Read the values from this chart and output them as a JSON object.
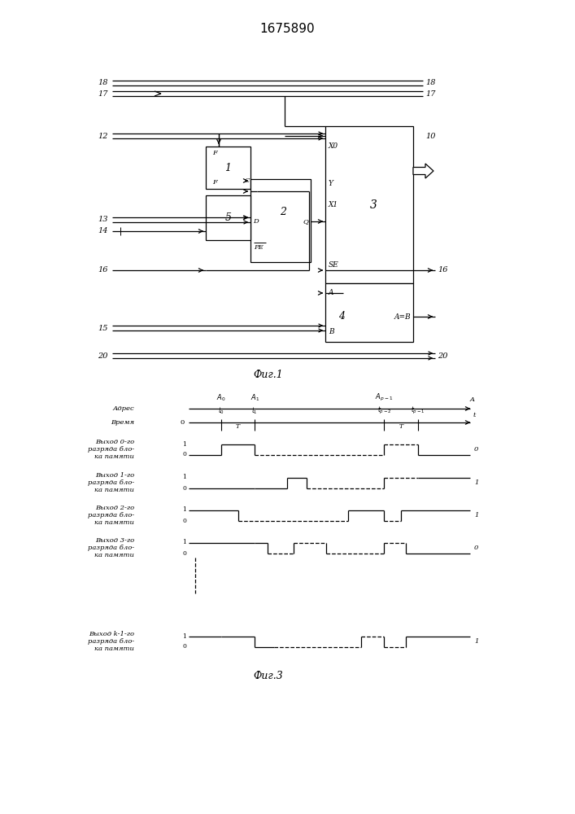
{
  "title": "1675890",
  "fig1_caption": "Фиг.1",
  "fig3_caption": "Фиг.3",
  "background_color": "#ffffff",
  "line_color": "#000000"
}
